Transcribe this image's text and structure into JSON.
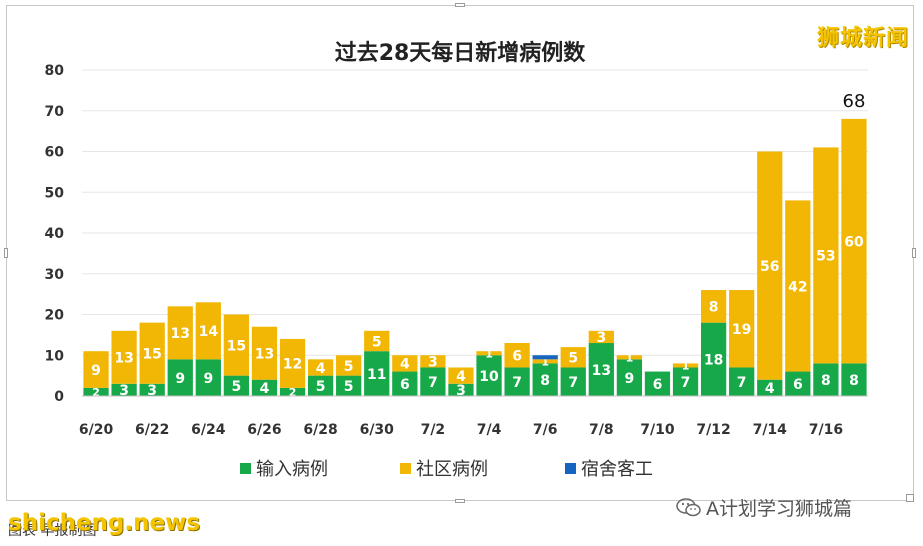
{
  "chart_data": {
    "type": "bar",
    "stacked": true,
    "title": "过去28天每日新增病例数",
    "categories": [
      "6/20",
      "6/21",
      "6/22",
      "6/23",
      "6/24",
      "6/25",
      "6/26",
      "6/27",
      "6/28",
      "6/29",
      "6/30",
      "7/1",
      "7/2",
      "7/3",
      "7/4",
      "7/5",
      "7/6",
      "7/7",
      "7/8",
      "7/9",
      "7/10",
      "7/11",
      "7/12",
      "7/13",
      "7/14",
      "7/15",
      "7/16",
      "7/17"
    ],
    "tick_labels": [
      "6/20",
      "",
      "6/22",
      "",
      "6/24",
      "",
      "6/26",
      "",
      "6/28",
      "",
      "6/30",
      "",
      "7/2",
      "",
      "7/4",
      "",
      "7/6",
      "",
      "7/8",
      "",
      "7/10",
      "",
      "7/12",
      "",
      "7/14",
      "",
      "7/16",
      ""
    ],
    "series": [
      {
        "name": "输入病例",
        "color": "#17a84a",
        "values": [
          2,
          3,
          3,
          9,
          9,
          5,
          4,
          2,
          5,
          5,
          11,
          6,
          7,
          3,
          10,
          7,
          8,
          7,
          13,
          9,
          6,
          7,
          18,
          7,
          4,
          6,
          8,
          8
        ]
      },
      {
        "name": "社区病例",
        "color": "#f2b705",
        "values": [
          9,
          13,
          15,
          13,
          14,
          15,
          13,
          12,
          4,
          5,
          5,
          4,
          3,
          4,
          1,
          6,
          1,
          5,
          3,
          1,
          0,
          1,
          8,
          19,
          56,
          42,
          53,
          60
        ]
      },
      {
        "name": "宿舍客工",
        "color": "#1565c0",
        "values": [
          0,
          0,
          0,
          0,
          0,
          0,
          0,
          0,
          0,
          0,
          0,
          0,
          0,
          0,
          0,
          0,
          1,
          0,
          0,
          0,
          0,
          0,
          0,
          0,
          0,
          0,
          0,
          0
        ]
      }
    ],
    "total_annotation": {
      "index": 27,
      "label": "68"
    },
    "ylim": [
      0,
      80
    ],
    "yticks": [
      0,
      10,
      20,
      30,
      40,
      50,
      60,
      70,
      80
    ],
    "grid": true,
    "legend_position": "bottom"
  },
  "watermark_top": "狮城新闻",
  "watermark_bottom": "shicheng.news",
  "footer_left": "图表   早报制图",
  "wechat_tag": "A计划学习狮城篇"
}
